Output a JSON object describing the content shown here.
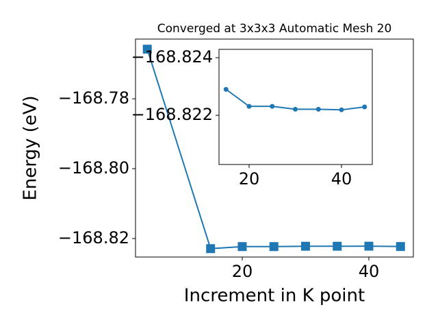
{
  "chart_data": [
    {
      "type": "line",
      "title": "Converged at 3x3x3 Automatic Mesh 20",
      "x_label": "Increment in K point",
      "y_label": "Energy (eV)",
      "marker": "square",
      "color": "#1f77b4",
      "x": [
        5,
        15,
        20,
        25,
        30,
        35,
        40,
        45
      ],
      "values": [
        -168.7658,
        -168.8229,
        -168.82231,
        -168.82231,
        -168.82221,
        -168.82221,
        -168.82219,
        -168.82229
      ],
      "xlim": [
        3.14,
        47.03
      ],
      "ylim": [
        -168.8253,
        -168.7629
      ],
      "xticks": [
        20,
        40
      ],
      "yticks": [
        {
          "value": -168.82,
          "label": "−168.82"
        },
        {
          "value": -168.8,
          "label": "−168.80"
        },
        {
          "value": -168.78,
          "label": "−168.78"
        }
      ]
    },
    {
      "type": "line",
      "marker": "circle",
      "color": "#1f77b4",
      "x": [
        15,
        20,
        25,
        30,
        35,
        40,
        45
      ],
      "values": [
        -168.8229,
        -168.82231,
        -168.82231,
        -168.82221,
        -168.82221,
        -168.82219,
        -168.82229
      ],
      "xlim": [
        13.48,
        46.67
      ],
      "ylim": [
        -168.82029,
        -168.82429
      ],
      "xticks": [
        20,
        40
      ],
      "yticks": [
        {
          "value": -168.824,
          "label": "−168.824"
        },
        {
          "value": -168.822,
          "label": "−168.822"
        }
      ]
    }
  ]
}
